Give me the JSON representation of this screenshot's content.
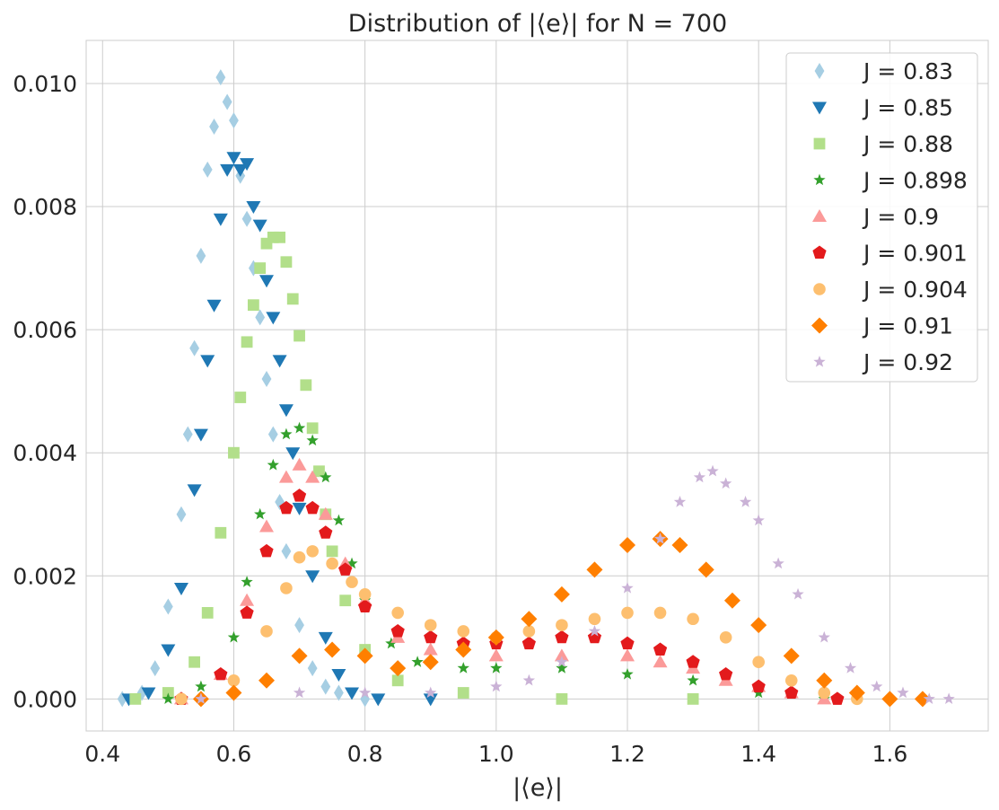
{
  "chart_data": {
    "type": "scatter",
    "title": "Distribution of  |⟨e⟩| for N =  700",
    "xlabel": "|⟨e⟩|",
    "ylabel": "",
    "xlim": [
      0.375,
      1.75
    ],
    "ylim": [
      -0.00052,
      0.0107
    ],
    "xticks": [
      0.4,
      0.6,
      0.8,
      1.0,
      1.2,
      1.4,
      1.6
    ],
    "xtick_labels": [
      "0.4",
      "0.6",
      "0.8",
      "1.0",
      "1.2",
      "1.4",
      "1.6"
    ],
    "yticks": [
      0.0,
      0.002,
      0.004,
      0.006,
      0.008,
      0.01
    ],
    "ytick_labels": [
      "0.000",
      "0.002",
      "0.004",
      "0.006",
      "0.008",
      "0.010"
    ],
    "grid": true,
    "legend_position": "top-right",
    "series": [
      {
        "name": "J = 0.83",
        "marker": "thin-diamond",
        "color": "#a6cee3",
        "x": [
          0.43,
          0.46,
          0.48,
          0.5,
          0.52,
          0.53,
          0.54,
          0.55,
          0.56,
          0.57,
          0.58,
          0.59,
          0.6,
          0.61,
          0.62,
          0.63,
          0.64,
          0.65,
          0.66,
          0.67,
          0.68,
          0.7,
          0.72,
          0.74,
          0.76,
          0.8
        ],
        "y": [
          0.0,
          0.0001,
          0.0005,
          0.0015,
          0.003,
          0.0043,
          0.0057,
          0.0072,
          0.0086,
          0.0093,
          0.0101,
          0.0097,
          0.0094,
          0.0085,
          0.0078,
          0.007,
          0.0062,
          0.0052,
          0.0043,
          0.0032,
          0.0024,
          0.0012,
          0.0005,
          0.0002,
          0.0001,
          0.0
        ]
      },
      {
        "name": "J = 0.85",
        "marker": "triangle-down",
        "color": "#1f78b4",
        "x": [
          0.44,
          0.47,
          0.5,
          0.52,
          0.54,
          0.55,
          0.56,
          0.57,
          0.58,
          0.59,
          0.6,
          0.61,
          0.62,
          0.63,
          0.64,
          0.65,
          0.66,
          0.67,
          0.68,
          0.69,
          0.7,
          0.72,
          0.74,
          0.76,
          0.78,
          0.82,
          0.9
        ],
        "y": [
          0.0,
          0.0001,
          0.0008,
          0.0018,
          0.0034,
          0.0043,
          0.0055,
          0.0064,
          0.0078,
          0.0086,
          0.0088,
          0.0086,
          0.0087,
          0.008,
          0.0077,
          0.0068,
          0.0062,
          0.0055,
          0.0047,
          0.004,
          0.0031,
          0.002,
          0.001,
          0.0004,
          0.0001,
          0.0,
          0.0
        ]
      },
      {
        "name": "J = 0.88",
        "marker": "square",
        "color": "#b2df8a",
        "x": [
          0.45,
          0.5,
          0.54,
          0.56,
          0.58,
          0.6,
          0.61,
          0.62,
          0.63,
          0.64,
          0.65,
          0.66,
          0.67,
          0.68,
          0.69,
          0.7,
          0.71,
          0.72,
          0.73,
          0.74,
          0.75,
          0.77,
          0.8,
          0.85,
          0.95,
          1.1,
          1.3
        ],
        "y": [
          0.0,
          0.0001,
          0.0006,
          0.0014,
          0.0027,
          0.004,
          0.0049,
          0.0058,
          0.0064,
          0.007,
          0.0074,
          0.0075,
          0.0075,
          0.0071,
          0.0065,
          0.0059,
          0.0051,
          0.0044,
          0.0037,
          0.003,
          0.0024,
          0.0016,
          0.0008,
          0.0003,
          0.0001,
          0.0,
          0.0
        ]
      },
      {
        "name": "J = 0.898",
        "marker": "star",
        "color": "#33a02c",
        "x": [
          0.5,
          0.55,
          0.6,
          0.62,
          0.64,
          0.66,
          0.68,
          0.7,
          0.72,
          0.74,
          0.76,
          0.78,
          0.8,
          0.84,
          0.88,
          0.95,
          1.0,
          1.1,
          1.2,
          1.3,
          1.4,
          1.5
        ],
        "y": [
          0.0,
          0.0002,
          0.001,
          0.0019,
          0.003,
          0.0038,
          0.0043,
          0.0044,
          0.0042,
          0.0036,
          0.0029,
          0.0022,
          0.0016,
          0.0009,
          0.0006,
          0.0005,
          0.0005,
          0.0005,
          0.0004,
          0.0003,
          0.0001,
          0.0
        ]
      },
      {
        "name": "J = 0.9",
        "marker": "triangle-up",
        "color": "#fb9a99",
        "x": [
          0.52,
          0.58,
          0.62,
          0.65,
          0.68,
          0.7,
          0.72,
          0.74,
          0.77,
          0.8,
          0.85,
          0.9,
          1.0,
          1.1,
          1.2,
          1.25,
          1.3,
          1.35,
          1.4,
          1.45,
          1.5
        ],
        "y": [
          0.0,
          0.0004,
          0.0016,
          0.0028,
          0.0036,
          0.0038,
          0.0036,
          0.003,
          0.0022,
          0.0016,
          0.001,
          0.0008,
          0.0007,
          0.0007,
          0.0007,
          0.0006,
          0.0005,
          0.0003,
          0.0002,
          0.0001,
          0.0
        ]
      },
      {
        "name": "J = 0.901",
        "marker": "pentagon",
        "color": "#e31a1c",
        "x": [
          0.52,
          0.58,
          0.62,
          0.65,
          0.68,
          0.7,
          0.72,
          0.74,
          0.77,
          0.8,
          0.85,
          0.9,
          0.95,
          1.0,
          1.05,
          1.1,
          1.15,
          1.2,
          1.25,
          1.3,
          1.35,
          1.4,
          1.45,
          1.52
        ],
        "y": [
          0.0,
          0.0004,
          0.0014,
          0.0024,
          0.0031,
          0.0033,
          0.0031,
          0.0027,
          0.0021,
          0.0015,
          0.0011,
          0.001,
          0.0009,
          0.0009,
          0.0009,
          0.001,
          0.001,
          0.0009,
          0.0008,
          0.0006,
          0.0004,
          0.0002,
          0.0001,
          0.0
        ]
      },
      {
        "name": "J = 0.904",
        "marker": "circle",
        "color": "#fdbf6f",
        "x": [
          0.52,
          0.6,
          0.65,
          0.68,
          0.7,
          0.72,
          0.75,
          0.78,
          0.8,
          0.85,
          0.9,
          0.95,
          1.0,
          1.05,
          1.1,
          1.15,
          1.2,
          1.25,
          1.3,
          1.35,
          1.4,
          1.45,
          1.5,
          1.55
        ],
        "y": [
          0.0,
          0.0003,
          0.0011,
          0.0018,
          0.0023,
          0.0024,
          0.0022,
          0.0019,
          0.0017,
          0.0014,
          0.0012,
          0.0011,
          0.001,
          0.0011,
          0.0012,
          0.0013,
          0.0014,
          0.0014,
          0.0013,
          0.001,
          0.0006,
          0.0003,
          0.0001,
          0.0
        ]
      },
      {
        "name": "J = 0.91",
        "marker": "diamond",
        "color": "#ff7f00",
        "x": [
          0.55,
          0.6,
          0.65,
          0.7,
          0.75,
          0.8,
          0.85,
          0.9,
          0.95,
          1.0,
          1.05,
          1.1,
          1.15,
          1.2,
          1.25,
          1.28,
          1.32,
          1.36,
          1.4,
          1.45,
          1.5,
          1.55,
          1.6,
          1.65
        ],
        "y": [
          0.0,
          0.0001,
          0.0003,
          0.0007,
          0.0008,
          0.0007,
          0.0005,
          0.0006,
          0.0008,
          0.001,
          0.0013,
          0.0017,
          0.0021,
          0.0025,
          0.0026,
          0.0025,
          0.0021,
          0.0016,
          0.0012,
          0.0007,
          0.0003,
          0.0001,
          0.0,
          0.0
        ]
      },
      {
        "name": "J = 0.92",
        "marker": "star",
        "color": "#cab2d6",
        "x": [
          0.55,
          0.7,
          0.8,
          0.9,
          1.0,
          1.05,
          1.1,
          1.15,
          1.2,
          1.25,
          1.28,
          1.31,
          1.33,
          1.35,
          1.38,
          1.4,
          1.43,
          1.46,
          1.5,
          1.54,
          1.58,
          1.62,
          1.66,
          1.69
        ],
        "y": [
          0.0,
          0.0001,
          0.0001,
          0.0001,
          0.0002,
          0.0003,
          0.0006,
          0.0011,
          0.0018,
          0.0026,
          0.0032,
          0.0036,
          0.0037,
          0.0035,
          0.0032,
          0.0029,
          0.0022,
          0.0017,
          0.001,
          0.0005,
          0.0002,
          0.0001,
          0.0,
          0.0
        ]
      }
    ]
  }
}
